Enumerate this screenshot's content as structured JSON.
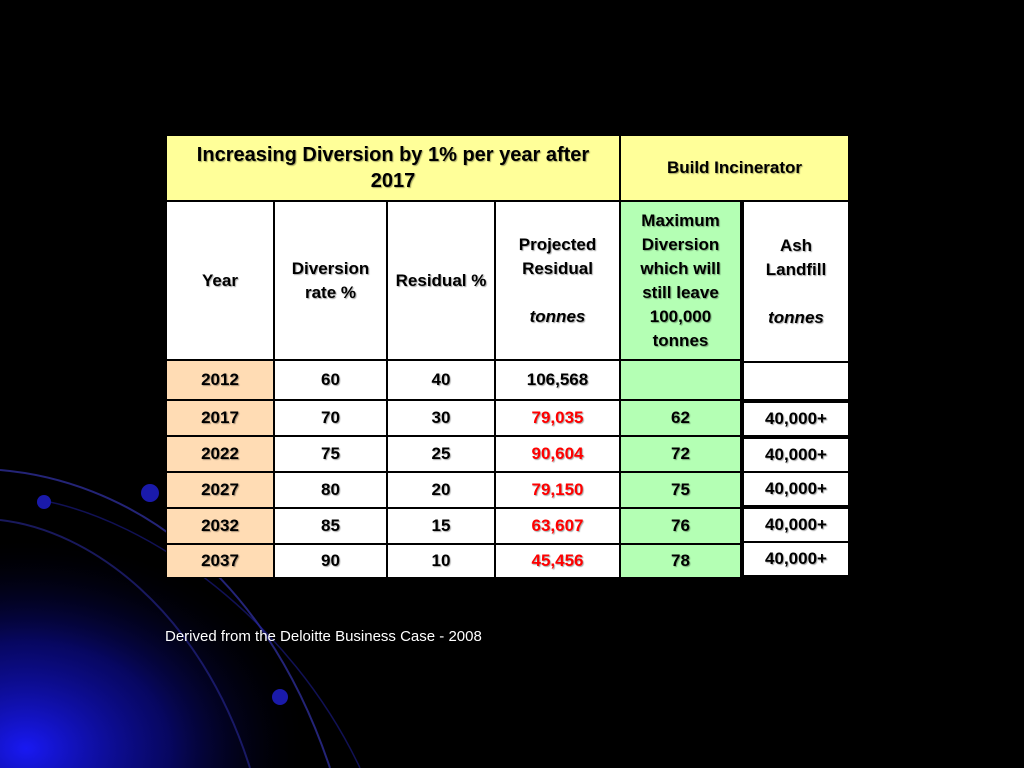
{
  "table": {
    "left_header": "Increasing Diversion by 1% per year after 2017",
    "right_header": "Build Incinerator",
    "col_year": "Year",
    "col_diversion": "Diversion rate %",
    "col_residual": "Residual %",
    "col_projected": "Projected Residual",
    "col_projected_unit": "tonnes",
    "col_max_diversion": "Maximum Diversion which will still leave 100,000 tonnes",
    "col_ash": "Ash Landfill",
    "col_ash_unit": "tonnes",
    "rows": [
      {
        "year": "2012",
        "diversion": "60",
        "residual": "40",
        "projected": "106,568",
        "max_diversion": "",
        "ash": ""
      },
      {
        "year": "2017",
        "diversion": "70",
        "residual": "30",
        "projected": "79,035",
        "max_diversion": "62",
        "ash": "40,000+"
      },
      {
        "year": "2022",
        "diversion": "75",
        "residual": "25",
        "projected": "90,604",
        "max_diversion": "72",
        "ash": "40,000+"
      },
      {
        "year": "2027",
        "diversion": "80",
        "residual": "20",
        "projected": "79,150",
        "max_diversion": "75",
        "ash": "40,000+"
      },
      {
        "year": "2032",
        "diversion": "85",
        "residual": "15",
        "projected": "63,607",
        "max_diversion": "76",
        "ash": "40,000+"
      },
      {
        "year": "2037",
        "diversion": "90",
        "residual": "10",
        "projected": "45,456",
        "max_diversion": "78",
        "ash": "40,000+"
      }
    ]
  },
  "footer": "Derived from the Deloitte Business Case - 2008",
  "colors": {
    "header_yellow": "#ffff99",
    "year_peach": "#ffdcb4",
    "max_green": "#b4ffb4",
    "projected_red": "#ff0000"
  }
}
